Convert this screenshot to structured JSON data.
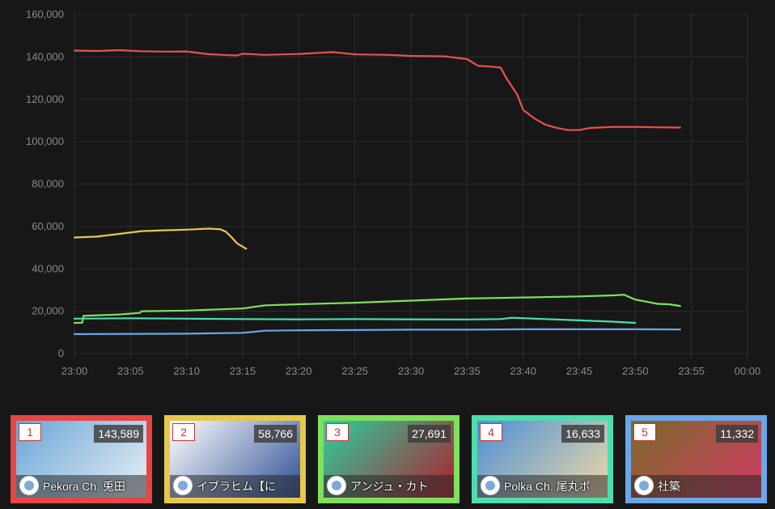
{
  "chart_data": {
    "type": "line",
    "x_ticks": [
      "23:00",
      "23:05",
      "23:10",
      "23:15",
      "23:20",
      "23:25",
      "23:30",
      "23:35",
      "23:40",
      "23:45",
      "23:50",
      "23:55",
      "00:00"
    ],
    "y_ticks": [
      "160,000",
      "140,000",
      "120,000",
      "100,000",
      "80,000",
      "60,000",
      "40,000",
      "20,000",
      "0"
    ],
    "ylim": [
      0,
      160000
    ],
    "xlim_minutes": [
      0,
      60
    ],
    "grid": true,
    "series": [
      {
        "color": "#e8524f",
        "x": [
          0,
          2,
          4,
          6,
          8,
          10,
          12,
          14,
          14.5,
          15,
          17,
          20,
          23,
          25,
          28,
          30,
          33,
          35,
          36,
          37,
          38,
          38.5,
          39,
          39.5,
          40,
          41,
          42,
          43,
          44,
          45,
          46,
          48,
          50,
          52,
          54
        ],
        "y": [
          143000,
          142800,
          143200,
          142700,
          142500,
          142600,
          141300,
          140800,
          140700,
          141500,
          141000,
          141400,
          142300,
          141200,
          141000,
          140500,
          140300,
          139000,
          135800,
          135500,
          135000,
          130000,
          126000,
          122000,
          115000,
          111000,
          108000,
          106500,
          105500,
          105500,
          106500,
          107000,
          107000,
          106800,
          106700
        ]
      },
      {
        "color": "#e6c84e",
        "x": [
          0,
          2,
          4,
          6,
          8,
          10,
          12,
          13,
          13.5,
          14,
          14.5,
          15,
          15.3
        ],
        "y": [
          54800,
          55200,
          56500,
          57800,
          58200,
          58500,
          59000,
          58700,
          57500,
          55000,
          52000,
          50500,
          49500
        ]
      },
      {
        "color": "#7fe05c",
        "x": [
          0,
          0.7,
          0.8,
          4,
          5.8,
          6,
          10,
          15,
          17,
          20,
          25,
          30,
          35,
          40,
          45,
          48,
          49,
          50,
          51,
          52,
          53,
          54
        ],
        "y": [
          14500,
          14600,
          17800,
          18500,
          19200,
          20000,
          20300,
          21300,
          22800,
          23300,
          24000,
          25000,
          26000,
          26500,
          27000,
          27500,
          27800,
          25500,
          24500,
          23500,
          23300,
          22500
        ]
      },
      {
        "color": "#4fdcae",
        "x": [
          0,
          5,
          10,
          15,
          20,
          25,
          30,
          35,
          38,
          39,
          42,
          45,
          48,
          50
        ],
        "y": [
          16500,
          16700,
          16500,
          16300,
          16200,
          16300,
          16200,
          16100,
          16300,
          16900,
          16300,
          15700,
          15100,
          14500
        ]
      },
      {
        "color": "#6aa6e8",
        "x": [
          0,
          5,
          10,
          15,
          17,
          20,
          25,
          30,
          35,
          40,
          45,
          50,
          54
        ],
        "y": [
          9200,
          9300,
          9400,
          9800,
          10800,
          11000,
          11100,
          11300,
          11300,
          11500,
          11500,
          11500,
          11400
        ]
      }
    ]
  },
  "cards": [
    {
      "rank": "1",
      "count": "143,589",
      "name": "Pekora Ch. 兎田",
      "border": "#e84545",
      "thumb_a": "#6aa6d6",
      "thumb_b": "#e9f0f7"
    },
    {
      "rank": "2",
      "count": "58,766",
      "name": "イブラヒム【に",
      "border": "#e6c84e",
      "thumb_a": "#ffffff",
      "thumb_b": "#2e4f94"
    },
    {
      "rank": "3",
      "count": "27,691",
      "name": "アンジュ・カト",
      "border": "#7fe05c",
      "thumb_a": "#2ad0a0",
      "thumb_b": "#b01e2d"
    },
    {
      "rank": "4",
      "count": "16,633",
      "name": "Polka Ch. 尾丸ポ",
      "border": "#4fdcae",
      "thumb_a": "#4b8fd6",
      "thumb_b": "#f0d9a8"
    },
    {
      "rank": "5",
      "count": "11,332",
      "name": "社築",
      "border": "#6aa6e8",
      "thumb_a": "#7a6a2a",
      "thumb_b": "#d23a64"
    }
  ]
}
